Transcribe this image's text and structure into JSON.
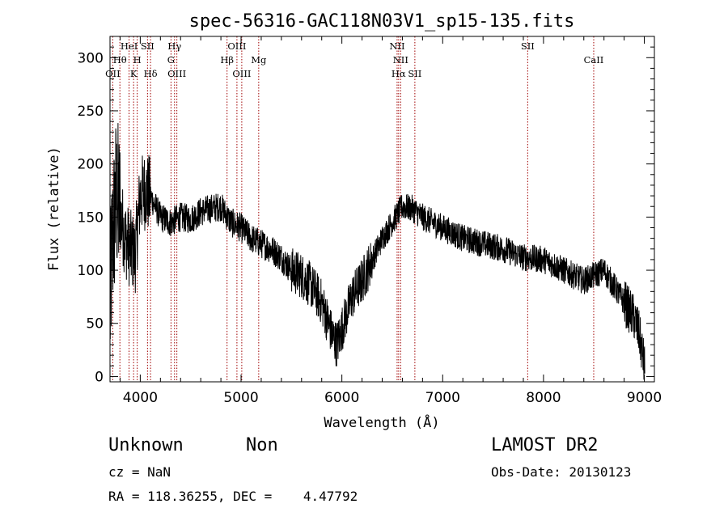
{
  "chart_data": {
    "type": "line",
    "title": "spec-56316-GAC118N03V1_sp15-135.fits",
    "xlabel": "Wavelength (Å)",
    "ylabel": "Flux (relative)",
    "xlim": [
      3700,
      9100
    ],
    "ylim": [
      -5,
      320
    ],
    "xticks": [
      4000,
      5000,
      6000,
      7000,
      8000,
      9000
    ],
    "yticks": [
      0,
      50,
      100,
      150,
      200,
      250,
      300
    ],
    "spectrum_shape": [
      [
        3700,
        60
      ],
      [
        3720,
        120
      ],
      [
        3760,
        170
      ],
      [
        3800,
        155
      ],
      [
        3850,
        130
      ],
      [
        3900,
        120
      ],
      [
        3950,
        115
      ],
      [
        4000,
        170
      ],
      [
        4050,
        175
      ],
      [
        4100,
        170
      ],
      [
        4150,
        160
      ],
      [
        4200,
        150
      ],
      [
        4300,
        145
      ],
      [
        4400,
        150
      ],
      [
        4500,
        148
      ],
      [
        4600,
        155
      ],
      [
        4700,
        158
      ],
      [
        4800,
        160
      ],
      [
        4900,
        145
      ],
      [
        5000,
        140
      ],
      [
        5100,
        130
      ],
      [
        5200,
        125
      ],
      [
        5300,
        120
      ],
      [
        5400,
        112
      ],
      [
        5500,
        100
      ],
      [
        5600,
        95
      ],
      [
        5700,
        85
      ],
      [
        5800,
        70
      ],
      [
        5900,
        40
      ],
      [
        5950,
        30
      ],
      [
        6000,
        45
      ],
      [
        6050,
        60
      ],
      [
        6100,
        75
      ],
      [
        6200,
        90
      ],
      [
        6300,
        110
      ],
      [
        6400,
        130
      ],
      [
        6500,
        145
      ],
      [
        6600,
        160
      ],
      [
        6700,
        158
      ],
      [
        6800,
        150
      ],
      [
        6900,
        145
      ],
      [
        7000,
        140
      ],
      [
        7100,
        135
      ],
      [
        7200,
        130
      ],
      [
        7400,
        125
      ],
      [
        7600,
        120
      ],
      [
        7800,
        112
      ],
      [
        8000,
        110
      ],
      [
        8200,
        100
      ],
      [
        8400,
        90
      ],
      [
        8500,
        95
      ],
      [
        8600,
        100
      ],
      [
        8700,
        85
      ],
      [
        8800,
        70
      ],
      [
        8900,
        55
      ],
      [
        8950,
        40
      ],
      [
        9000,
        10
      ]
    ],
    "line_color": "#000000",
    "marker_line_color": "#a00000",
    "line_markers": [
      {
        "wavelength": 3727,
        "labels": [
          "OII"
        ],
        "row": [
          2
        ]
      },
      {
        "wavelength": 3798,
        "labels": [
          "Hθ"
        ],
        "row": [
          1
        ]
      },
      {
        "wavelength": 3889,
        "labels": [
          "HeI"
        ],
        "row": [
          0
        ]
      },
      {
        "wavelength": 3934,
        "labels": [
          "K"
        ],
        "row": [
          2
        ]
      },
      {
        "wavelength": 3970,
        "labels": [
          "H"
        ],
        "row": [
          1
        ]
      },
      {
        "wavelength": 4072,
        "labels": [
          "SII"
        ],
        "row": [
          0
        ]
      },
      {
        "wavelength": 4102,
        "labels": [
          "Hδ"
        ],
        "row": [
          2
        ]
      },
      {
        "wavelength": 4305,
        "labels": [
          "G"
        ],
        "row": [
          1
        ]
      },
      {
        "wavelength": 4340,
        "labels": [
          "Hγ"
        ],
        "row": [
          0
        ]
      },
      {
        "wavelength": 4363,
        "labels": [
          "OIII"
        ],
        "row": [
          2
        ]
      },
      {
        "wavelength": 4861,
        "labels": [
          "Hβ"
        ],
        "row": [
          1
        ]
      },
      {
        "wavelength": 4959,
        "labels": [
          "OIII"
        ],
        "row": [
          0
        ]
      },
      {
        "wavelength": 5007,
        "labels": [
          "OIII"
        ],
        "row": [
          2
        ]
      },
      {
        "wavelength": 5175,
        "labels": [
          "Mg"
        ],
        "row": [
          1
        ]
      },
      {
        "wavelength": 6548,
        "labels": [
          "NII"
        ],
        "row": [
          0
        ]
      },
      {
        "wavelength": 6563,
        "labels": [
          "Hα"
        ],
        "row": [
          2
        ]
      },
      {
        "wavelength": 6583,
        "labels": [
          "NII"
        ],
        "row": [
          1
        ]
      },
      {
        "wavelength": 6724,
        "labels": [
          "SII"
        ],
        "row": [
          2
        ]
      },
      {
        "wavelength": 7843,
        "labels": [
          "SII"
        ],
        "row": [
          0
        ]
      },
      {
        "wavelength": 8498,
        "labels": [
          "CaII"
        ],
        "row": [
          1
        ]
      }
    ]
  },
  "info": {
    "class": "Unknown",
    "subclass": "Non",
    "survey": "LAMOST DR2",
    "cz": "cz = NaN",
    "obs_date": "Obs-Date: 20130123",
    "coords": "RA = 118.36255, DEC =    4.47792"
  }
}
